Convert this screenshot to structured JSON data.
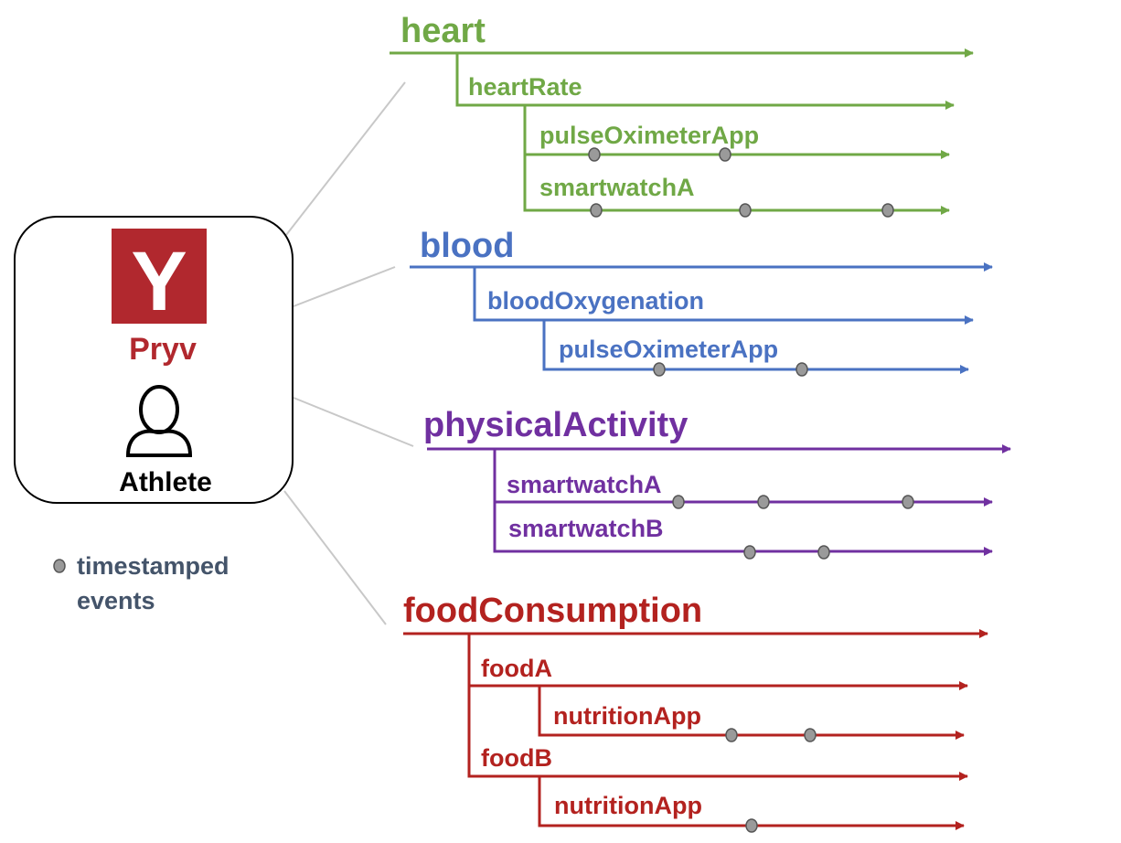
{
  "colors": {
    "heart": "#70a846",
    "blood": "#4a72c2",
    "physicalActivity": "#7030a0",
    "foodConsumption": "#b3221f",
    "connector": "#c8c8c8",
    "event": "#9a9a9a",
    "logo": "#b1282e",
    "legendText": "#44546a"
  },
  "user": {
    "logo_letter": "Y",
    "brand": "Pryv",
    "role": "Athlete",
    "icons": [
      "pryv-logo-icon",
      "person-icon"
    ]
  },
  "legend": {
    "line1": "timestamped",
    "line2": "events"
  },
  "streams": {
    "heart": {
      "label": "heart",
      "heartRate": {
        "label": "heartRate",
        "pulseOximeterApp": {
          "label": "pulseOximeterApp",
          "events": 2
        },
        "smartwatchA": {
          "label": "smartwatchA",
          "events": 3
        }
      }
    },
    "blood": {
      "label": "blood",
      "bloodOxygenation": {
        "label": "bloodOxygenation",
        "pulseOximeterApp": {
          "label": "pulseOximeterApp",
          "events": 2
        }
      }
    },
    "physicalActivity": {
      "label": "physicalActivity",
      "smartwatchA": {
        "label": "smartwatchA",
        "events": 3
      },
      "smartwatchB": {
        "label": "smartwatchB",
        "events": 2
      }
    },
    "foodConsumption": {
      "label": "foodConsumption",
      "foodA": {
        "label": "foodA",
        "nutritionApp": {
          "label": "nutritionApp",
          "events": 2
        }
      },
      "foodB": {
        "label": "foodB",
        "nutritionApp": {
          "label": "nutritionApp",
          "events": 1
        }
      }
    }
  }
}
